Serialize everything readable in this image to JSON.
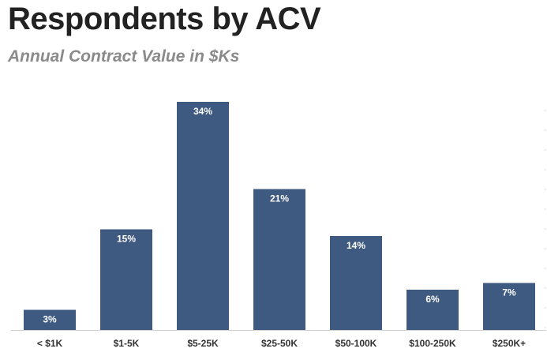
{
  "header": {
    "title": "Respondents by ACV",
    "subtitle": "Annual Contract Value in $Ks"
  },
  "colors": {
    "bar": "#3f5a80",
    "axis": "#cfcfcf",
    "bar_label": "#ffffff",
    "tick_label": "#333333"
  },
  "chart_data": {
    "type": "bar",
    "title": "Respondents by ACV",
    "subtitle": "Annual Contract Value in $Ks",
    "categories": [
      "< $1K",
      "$1-5K",
      "$5-25K",
      "$25-50K",
      "$50-100K",
      "$100-250K",
      "$250K+"
    ],
    "values": [
      3,
      15,
      34,
      21,
      14,
      6,
      7
    ],
    "data_labels": [
      "3%",
      "15%",
      "34%",
      "21%",
      "14%",
      "6%",
      "7%"
    ],
    "unit": "%",
    "xlabel": "",
    "ylabel": "",
    "ylim": [
      0,
      34
    ],
    "grid": false,
    "legend": "none"
  }
}
